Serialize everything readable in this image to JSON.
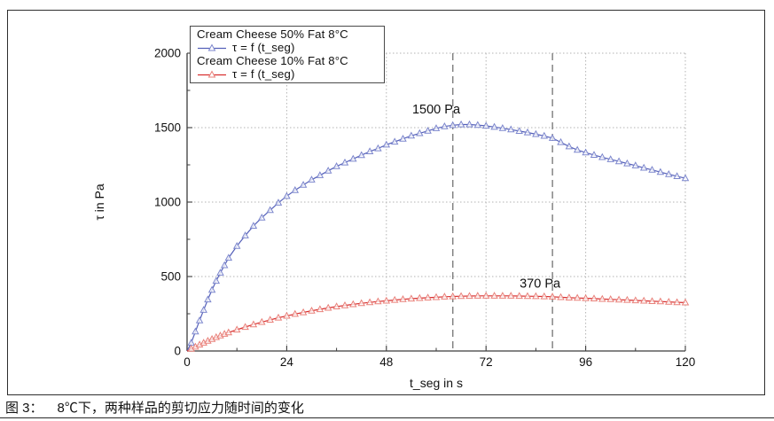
{
  "caption": {
    "label": "图 3：",
    "text": "8℃下，两种样品的剪切应力随时间的变化"
  },
  "chart_data": {
    "type": "line",
    "x_axis": {
      "title": "t_seg in s",
      "range": [
        0,
        120
      ],
      "major_ticks": [
        0,
        24,
        48,
        72,
        96,
        120
      ],
      "minor_tick_step": 12
    },
    "y_axis": {
      "title": "τ in Pa",
      "range": [
        0,
        2000
      ],
      "major_ticks": [
        0,
        500,
        1000,
        1500,
        2000
      ],
      "minor_tick_step": 250
    },
    "grid": {
      "style": "dotted",
      "color": "#b3b3b3",
      "on_major_ticks": true
    },
    "series": [
      {
        "name": "Cream Cheese 50% Fat 8°C",
        "fn_label": "τ = f (t_seg)",
        "line_color": "#5560b9",
        "marker_color": "#7d87cd",
        "marker": "triangle-up-hollow",
        "points": [
          [
            0,
            0
          ],
          [
            1,
            55
          ],
          [
            2,
            130
          ],
          [
            3,
            205
          ],
          [
            4,
            275
          ],
          [
            5,
            345
          ],
          [
            6,
            410
          ],
          [
            7,
            470
          ],
          [
            8,
            525
          ],
          [
            9,
            575
          ],
          [
            10,
            625
          ],
          [
            12,
            705
          ],
          [
            14,
            775
          ],
          [
            16,
            840
          ],
          [
            18,
            895
          ],
          [
            20,
            945
          ],
          [
            22,
            995
          ],
          [
            24,
            1040
          ],
          [
            26,
            1080
          ],
          [
            28,
            1115
          ],
          [
            30,
            1150
          ],
          [
            32,
            1180
          ],
          [
            34,
            1210
          ],
          [
            36,
            1240
          ],
          [
            38,
            1265
          ],
          [
            40,
            1290
          ],
          [
            42,
            1315
          ],
          [
            44,
            1340
          ],
          [
            46,
            1360
          ],
          [
            48,
            1385
          ],
          [
            50,
            1405
          ],
          [
            52,
            1425
          ],
          [
            54,
            1445
          ],
          [
            56,
            1462
          ],
          [
            58,
            1478
          ],
          [
            60,
            1495
          ],
          [
            62,
            1508
          ],
          [
            64,
            1516
          ],
          [
            66,
            1521
          ],
          [
            68,
            1521
          ],
          [
            70,
            1517
          ],
          [
            72,
            1512
          ],
          [
            74,
            1504
          ],
          [
            76,
            1496
          ],
          [
            78,
            1487
          ],
          [
            80,
            1477
          ],
          [
            82,
            1467
          ],
          [
            84,
            1456
          ],
          [
            86,
            1444
          ],
          [
            88,
            1430
          ],
          [
            90,
            1402
          ],
          [
            92,
            1373
          ],
          [
            94,
            1350
          ],
          [
            96,
            1332
          ],
          [
            98,
            1316
          ],
          [
            100,
            1301
          ],
          [
            102,
            1287
          ],
          [
            104,
            1273
          ],
          [
            106,
            1259
          ],
          [
            108,
            1245
          ],
          [
            110,
            1230
          ],
          [
            112,
            1216
          ],
          [
            114,
            1201
          ],
          [
            116,
            1187
          ],
          [
            118,
            1173
          ],
          [
            120,
            1160
          ]
        ]
      },
      {
        "name": "Cream Cheese 10% Fat 8°C",
        "fn_label": "τ = f (t_seg)",
        "line_color": "#d83030",
        "marker_color": "#e9817a",
        "marker": "triangle-up-hollow",
        "points": [
          [
            0,
            0
          ],
          [
            1,
            14
          ],
          [
            2,
            28
          ],
          [
            3,
            42
          ],
          [
            4,
            55
          ],
          [
            5,
            68
          ],
          [
            6,
            80
          ],
          [
            7,
            92
          ],
          [
            8,
            103
          ],
          [
            9,
            114
          ],
          [
            10,
            124
          ],
          [
            12,
            143
          ],
          [
            14,
            161
          ],
          [
            16,
            178
          ],
          [
            18,
            194
          ],
          [
            20,
            209
          ],
          [
            22,
            223
          ],
          [
            24,
            236
          ],
          [
            26,
            248
          ],
          [
            28,
            259
          ],
          [
            30,
            270
          ],
          [
            32,
            280
          ],
          [
            34,
            289
          ],
          [
            36,
            298
          ],
          [
            38,
            306
          ],
          [
            40,
            313
          ],
          [
            42,
            320
          ],
          [
            44,
            326
          ],
          [
            46,
            332
          ],
          [
            48,
            337
          ],
          [
            50,
            342
          ],
          [
            52,
            347
          ],
          [
            54,
            351
          ],
          [
            56,
            355
          ],
          [
            58,
            358
          ],
          [
            60,
            361
          ],
          [
            62,
            364
          ],
          [
            64,
            366
          ],
          [
            66,
            368
          ],
          [
            68,
            369
          ],
          [
            70,
            370
          ],
          [
            72,
            370
          ],
          [
            74,
            370
          ],
          [
            76,
            370
          ],
          [
            78,
            370
          ],
          [
            80,
            369
          ],
          [
            82,
            368
          ],
          [
            84,
            367
          ],
          [
            86,
            366
          ],
          [
            88,
            364
          ],
          [
            90,
            361
          ],
          [
            92,
            358
          ],
          [
            94,
            356
          ],
          [
            96,
            354
          ],
          [
            98,
            352
          ],
          [
            100,
            349
          ],
          [
            102,
            347
          ],
          [
            104,
            344
          ],
          [
            106,
            342
          ],
          [
            108,
            339
          ],
          [
            110,
            337
          ],
          [
            112,
            334
          ],
          [
            114,
            332
          ],
          [
            116,
            330
          ],
          [
            118,
            327
          ],
          [
            120,
            325
          ]
        ]
      }
    ],
    "annotations": {
      "labels": [
        {
          "text": "1500 Pa",
          "t": 60,
          "tau": 1625
        },
        {
          "text": "370 Pa",
          "t": 85,
          "tau": 455
        }
      ],
      "dashed_vlines_t": [
        64,
        88
      ],
      "dashed_line_color": "#7d7d7d"
    }
  }
}
